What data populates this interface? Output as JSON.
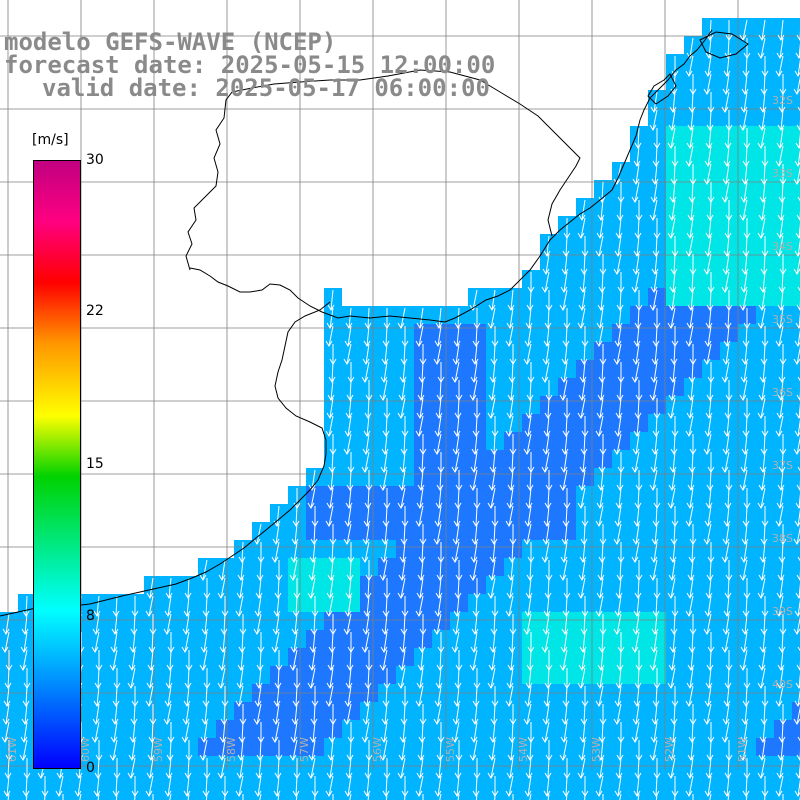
{
  "title": {
    "line1": "modelo GEFS-WAVE (NCEP)",
    "line2": "forecast date: 2025-05-15 12:00:00",
    "line3": "valid date: 2025-05-17 06:00:00"
  },
  "colorbar": {
    "unit": "[m/s]",
    "min": 0,
    "max": 30,
    "tick_labels": [
      "30",
      "22",
      "15",
      "8",
      "0"
    ],
    "tick_values": [
      30,
      22,
      15,
      8,
      0
    ],
    "colors": [
      "#0000ff",
      "#00b4ff",
      "#00ffff",
      "#00d200",
      "#ffff00",
      "#ff9600",
      "#ff0000",
      "#ff0080",
      "#c00080"
    ]
  },
  "map": {
    "field": "wind speed with direction arrows",
    "grid_lon_labels": [
      "61W",
      "60W",
      "59W",
      "58W",
      "57W",
      "56W",
      "55W",
      "54W",
      "53W",
      "52W",
      "51W"
    ],
    "grid_lat_labels": [
      "32S",
      "33S",
      "34S",
      "35S",
      "36S",
      "37S",
      "38S",
      "39S",
      "40S"
    ],
    "colors": {
      "land": "#ffffff",
      "coastline": "#000000",
      "grid": "#7f7f7f",
      "ocean_low": "#1e78ff",
      "ocean_mid": "#00b4ff",
      "ocean_high": "#00e6e6",
      "arrow": "#ffffff"
    },
    "wind_direction": "mostly southward"
  }
}
